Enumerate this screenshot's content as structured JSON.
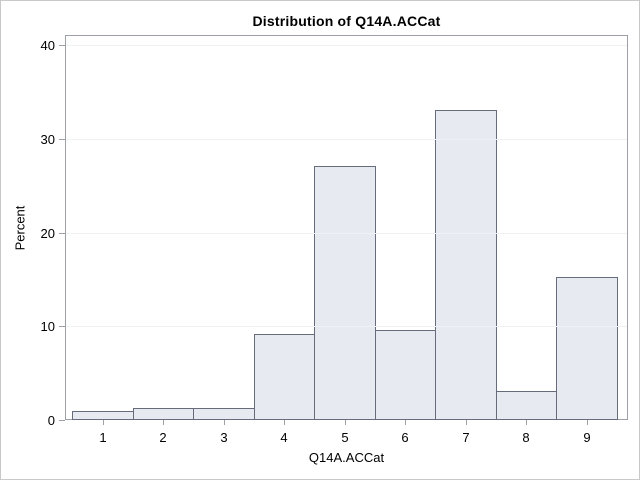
{
  "figure": {
    "kind": "statistical-graph-output",
    "background": "#ffffff",
    "border_color": "#c9c9c9"
  },
  "chart_data": {
    "type": "bar",
    "subtype": "histogram",
    "title": "Distribution of Q14A.ACCat",
    "xlabel": "Q14A.ACCat",
    "ylabel": "Percent",
    "categories": [
      "1",
      "2",
      "3",
      "4",
      "5",
      "6",
      "7",
      "8",
      "9"
    ],
    "values": [
      0.8,
      1.2,
      1.2,
      9.1,
      27.0,
      9.5,
      33.0,
      3.0,
      15.1
    ],
    "ylim": [
      0,
      40
    ],
    "yticks": [
      0,
      10,
      20,
      30,
      40
    ],
    "grid": "faint horizontal gridlines at each y tick",
    "legend_position": "none",
    "colors": {
      "bar_fill": "#e7eaf1",
      "bar_border": "#666c79",
      "axis_frame": "#9da0a6",
      "gridline": "#f0f1f4",
      "text": "#000000",
      "figure_border": "#c9c9c9",
      "background": "#ffffff"
    }
  }
}
